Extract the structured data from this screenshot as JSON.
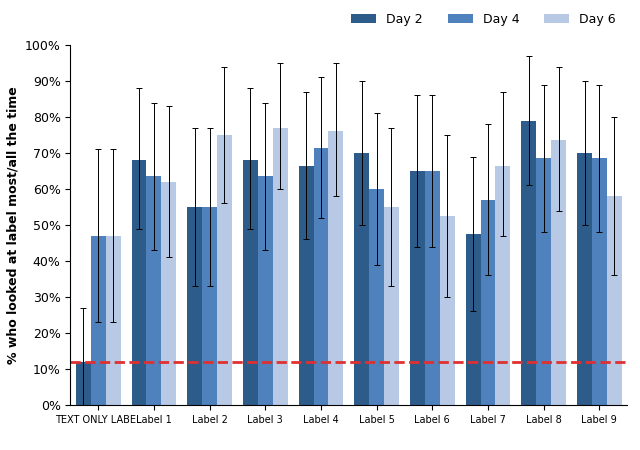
{
  "chart_data": {
    "type": "bar",
    "y_label": "% who looked at label most/all the time",
    "categories": [
      "TEXT ONLY LABEL",
      "Label 1",
      "Label 2",
      "Label 3",
      "Label 4",
      "Label 5",
      "Label 6",
      "Label 7",
      "Label 8",
      "Label 9"
    ],
    "series": [
      {
        "name": "Day 2",
        "color": "#2e5c8a",
        "values": [
          12,
          68,
          55,
          68,
          66.5,
          70,
          65,
          47.5,
          79,
          70
        ],
        "ci_low": [
          0,
          49,
          33,
          49,
          46,
          50,
          44,
          26,
          61,
          50
        ],
        "ci_high": [
          27,
          88,
          77,
          88,
          87,
          90,
          86,
          69,
          97,
          90
        ]
      },
      {
        "name": "Day 4",
        "color": "#4f81bd",
        "values": [
          47,
          63.5,
          55,
          63.5,
          71.5,
          60,
          65,
          57,
          68.5,
          68.5
        ],
        "ci_low": [
          23,
          43,
          33,
          43,
          52,
          39,
          44,
          36,
          48,
          48
        ],
        "ci_high": [
          71,
          84,
          77,
          84,
          91,
          81,
          86,
          78,
          89,
          89
        ]
      },
      {
        "name": "Day 6",
        "color": "#b8c9e6",
        "values": [
          47,
          62,
          75,
          77,
          76,
          55,
          52.5,
          66.5,
          73.5,
          58
        ],
        "ci_low": [
          23,
          41,
          56,
          60,
          58,
          33,
          30,
          47,
          54,
          36
        ],
        "ci_high": [
          71,
          83,
          94,
          95,
          95,
          77,
          75,
          87,
          94,
          80
        ]
      }
    ],
    "reference_line": {
      "value": 12,
      "color": "#e03030"
    },
    "ylim": [
      0,
      100
    ],
    "yticks": [
      {
        "value": 0,
        "label": "0%"
      },
      {
        "value": 10,
        "label": "10%"
      },
      {
        "value": 20,
        "label": "20%"
      },
      {
        "value": 30,
        "label": "30%"
      },
      {
        "value": 40,
        "label": "40%"
      },
      {
        "value": 50,
        "label": "50%"
      },
      {
        "value": 60,
        "label": "60%"
      },
      {
        "value": 70,
        "label": "70%"
      },
      {
        "value": 80,
        "label": "80%"
      },
      {
        "value": 90,
        "label": "90%"
      },
      {
        "value": 100,
        "label": "100%"
      }
    ],
    "grid": false,
    "legend": "upper right"
  }
}
